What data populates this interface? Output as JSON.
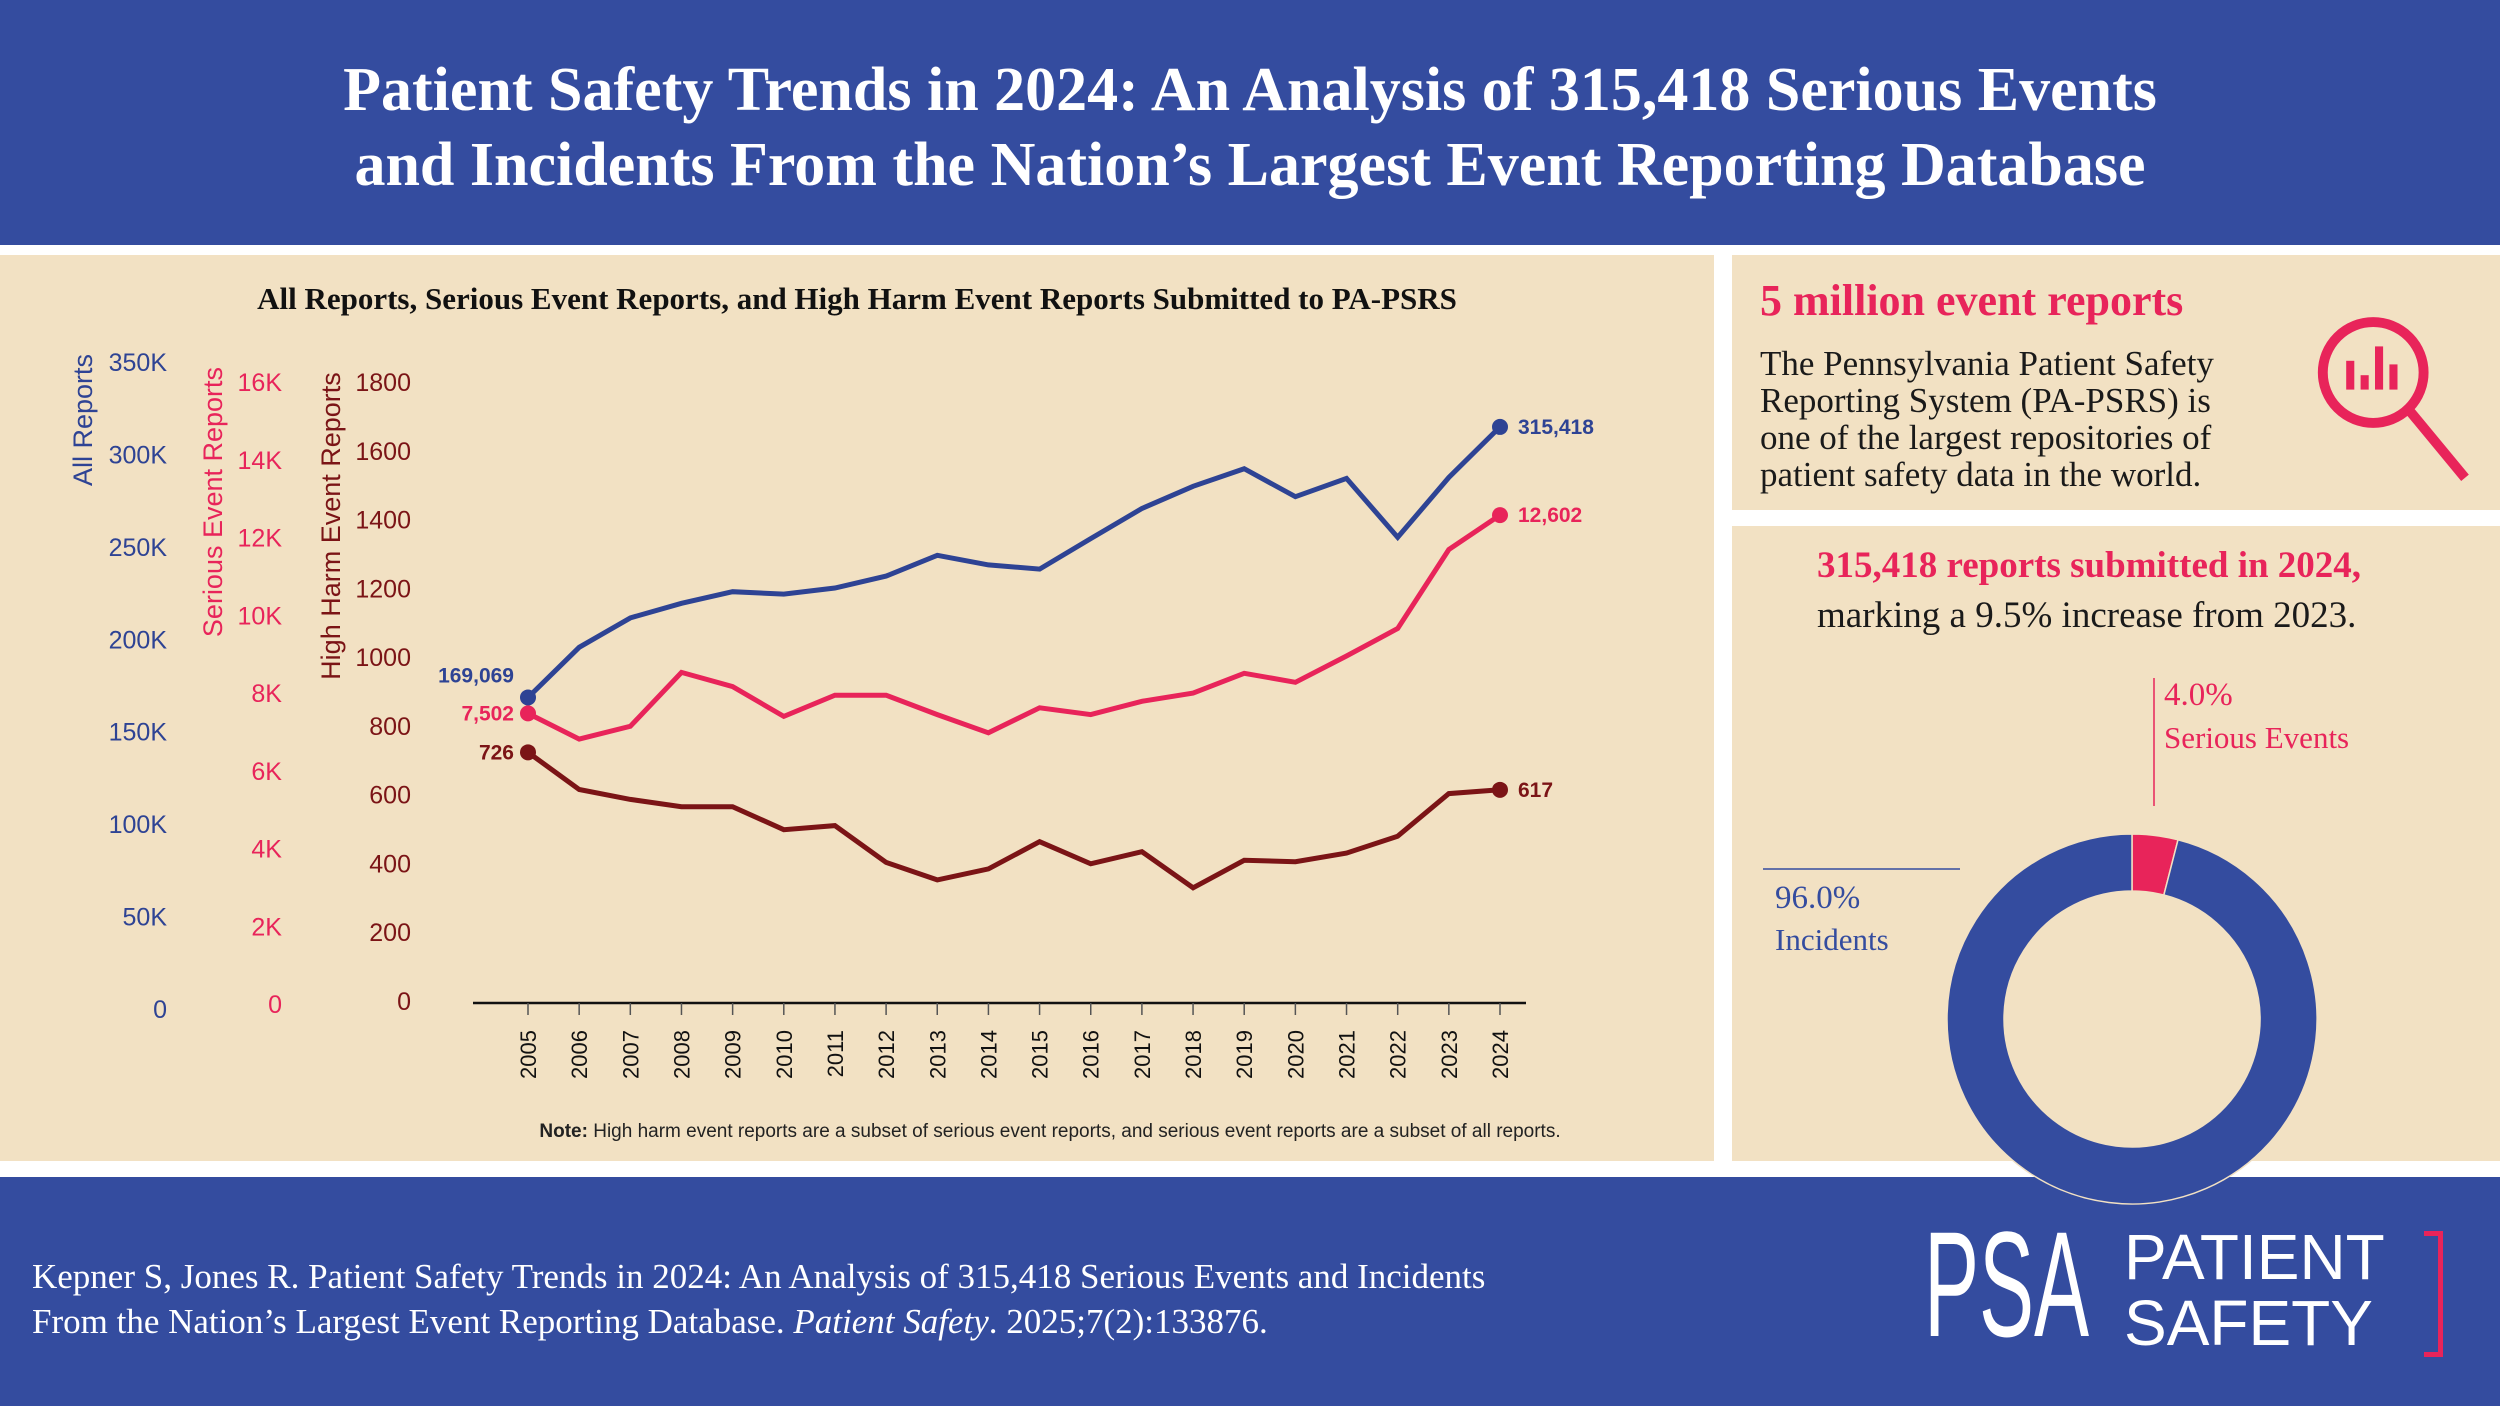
{
  "header": {
    "title_line1": "Patient Safety Trends in 2024: An Analysis of 315,418 Serious Events",
    "title_line2": "and Incidents From the Nation’s Largest Event Reporting Database"
  },
  "chart_data": {
    "type": "line",
    "title": "All Reports, Serious Event Reports, and High Harm Event Reports Submitted to PA-PSRS",
    "xlabel": "",
    "categories": [
      "2005",
      "2006",
      "2007",
      "2008",
      "2009",
      "2010",
      "2011",
      "2012",
      "2013",
      "2014",
      "2015",
      "2016",
      "2017",
      "2018",
      "2019",
      "2020",
      "2021",
      "2022",
      "2023",
      "2024"
    ],
    "series": [
      {
        "name": "All Reports",
        "color": "#2e4394",
        "ylim": [
          0,
          350000
        ],
        "ticks": [
          0,
          50000,
          100000,
          150000,
          200000,
          250000,
          300000,
          350000
        ],
        "tick_labels": [
          "0",
          "50K",
          "100K",
          "150K",
          "200K",
          "250K",
          "300K",
          "350K"
        ],
        "values": [
          169069,
          196200,
          212100,
          220000,
          226300,
          225000,
          228300,
          234700,
          246000,
          240800,
          238500,
          255000,
          271300,
          283300,
          292800,
          277700,
          287600,
          255700,
          288053,
          315418
        ],
        "start_label": "169,069",
        "end_label": "315,418"
      },
      {
        "name": "Serious Event Reports",
        "color": "#e8245a",
        "ylim": [
          0,
          16000
        ],
        "ticks": [
          0,
          2000,
          4000,
          6000,
          8000,
          10000,
          12000,
          14000,
          16000
        ],
        "tick_labels": [
          "0",
          "2K",
          "4K",
          "6K",
          "8K",
          "10K",
          "12K",
          "14K",
          "16K"
        ],
        "values": [
          7502,
          6840,
          7170,
          8555,
          8190,
          7425,
          7968,
          7968,
          7469,
          7003,
          7646,
          7469,
          7813,
          8023,
          8533,
          8300,
          8977,
          9686,
          11715,
          12602
        ],
        "start_label": "7,502",
        "end_label": "12,602"
      },
      {
        "name": "High Harm Event Reports",
        "color": "#7b1416",
        "ylim": [
          0,
          1800
        ],
        "ticks": [
          0,
          200,
          400,
          600,
          800,
          1000,
          1200,
          1400,
          1600,
          1800
        ],
        "tick_labels": [
          "0",
          "200",
          "400",
          "600",
          "800",
          "1000",
          "1200",
          "1400",
          "1600",
          "1800"
        ],
        "values": [
          726,
          618,
          589,
          568,
          568,
          501,
          513,
          406,
          355,
          387,
          466,
          402,
          437,
          332,
          412,
          408,
          433,
          482,
          606,
          617
        ],
        "start_label": "726",
        "end_label": "617"
      }
    ],
    "note_bold": "Note:",
    "note_text": " High harm event reports are a subset of serious event reports, and serious event reports are a subset of all reports."
  },
  "stat_panel": {
    "heading": "5 million event reports",
    "body_lines": [
      "The Pennsylvania Patient Safety",
      "Reporting System (PA-PSRS) is",
      "one of the largest repositories of",
      "patient safety data in the world."
    ],
    "icon": "magnifier-chart-icon"
  },
  "increase_panel": {
    "heading": "315,418 reports submitted in 2024,",
    "subheading": "marking a 9.5% increase from 2023.",
    "donut": {
      "type": "pie",
      "segments": [
        {
          "label": "Serious Events",
          "value": 4.0,
          "percent_text": "4.0%",
          "color": "#e8245a"
        },
        {
          "label": "Incidents",
          "value": 96.0,
          "percent_text": "96.0%",
          "color": "#344c9f"
        }
      ]
    }
  },
  "footer": {
    "citation_line1": "Kepner S, Jones R. Patient Safety Trends in 2024: An Analysis of 315,418 Serious Events and Incidents",
    "citation_line2_prefix": "From the Nation’s Largest Event Reporting Database. ",
    "journal": "Patient Safety",
    "citation_line2_suffix": ". 2025;7(2):133876."
  },
  "logo": {
    "mark": "PSA",
    "line1": "PATIENT",
    "line2": "SAFETY"
  }
}
